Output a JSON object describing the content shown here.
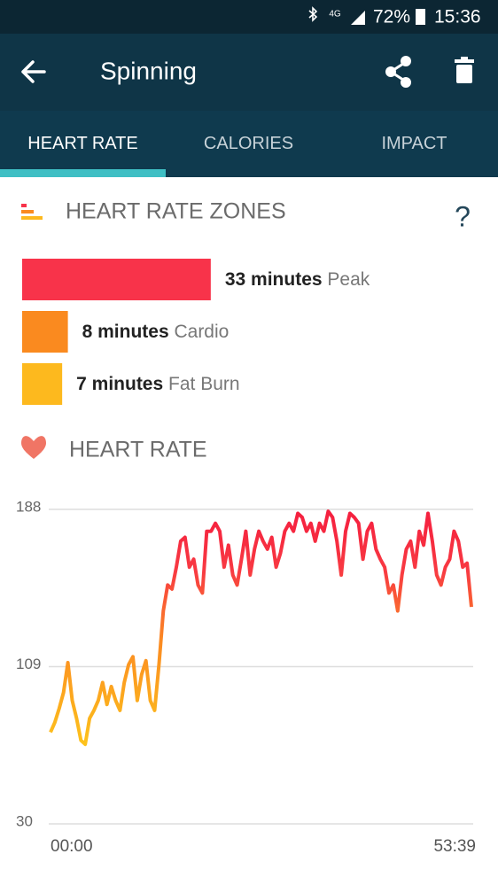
{
  "status_bar": {
    "network": "4G",
    "battery": "72%",
    "time": "15:36"
  },
  "app_bar": {
    "title": "Spinning"
  },
  "tabs": [
    "HEART RATE",
    "CALORIES",
    "IMPACT"
  ],
  "zones_section": {
    "title": "HEART RATE ZONES",
    "help": "?",
    "zones": [
      {
        "value_label": "33 minutes",
        "name": "Peak",
        "minutes": 33,
        "color": "#f8334a"
      },
      {
        "value_label": "8 minutes",
        "name": "Cardio",
        "minutes": 8,
        "color": "#fa8a1f"
      },
      {
        "value_label": "7 minutes",
        "name": "Fat Burn",
        "minutes": 7,
        "color": "#fdb91e"
      }
    ]
  },
  "heart_rate_section": {
    "title": "HEART RATE",
    "chart_data": {
      "type": "line",
      "x_labels": [
        "00:00",
        "53:39"
      ],
      "ylim": [
        30,
        188
      ],
      "yticks": [
        30,
        109,
        188
      ],
      "grid": true,
      "values": [
        76,
        81,
        88,
        96,
        111,
        92,
        83,
        72,
        70,
        83,
        87,
        92,
        101,
        90,
        99,
        92,
        87,
        101,
        110,
        114,
        92,
        105,
        112,
        92,
        87,
        110,
        137,
        150,
        148,
        159,
        172,
        174,
        159,
        163,
        150,
        146,
        177,
        177,
        181,
        177,
        159,
        170,
        155,
        150,
        163,
        177,
        155,
        168,
        177,
        172,
        168,
        174,
        159,
        166,
        177,
        181,
        177,
        186,
        184,
        177,
        181,
        172,
        181,
        177,
        187,
        184,
        172,
        155,
        177,
        186,
        184,
        181,
        163,
        177,
        181,
        168,
        163,
        159,
        146,
        150,
        137,
        155,
        168,
        172,
        159,
        177,
        170,
        186,
        172,
        155,
        150,
        159,
        163,
        177,
        172,
        159,
        161,
        139
      ]
    }
  }
}
